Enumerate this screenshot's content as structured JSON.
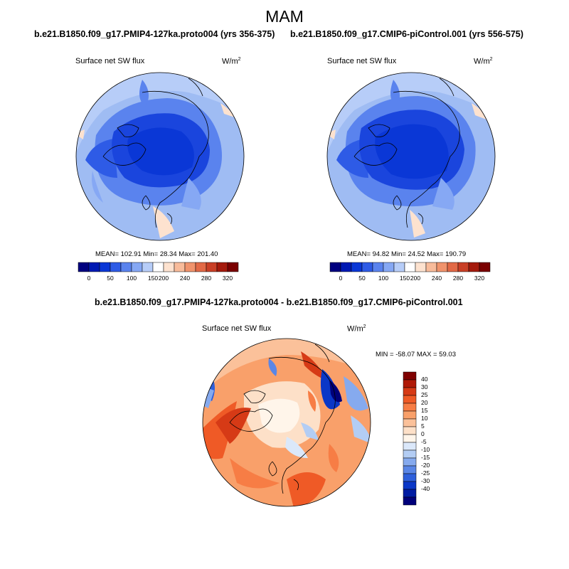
{
  "figure_title": "MAM",
  "panels": [
    {
      "case": "b.e21.B1850.f09_g17.PMIP4-127ka.proto004 (yrs 356-375)",
      "variable": "Surface net SW flux",
      "units": "W/m",
      "units_exp": "2",
      "stats": "MEAN= 102.91  Min=  28.34  Max= 201.40"
    },
    {
      "case": "b.e21.B1850.f09_g17.CMIP6-piControl.001 (yrs 556-575)",
      "variable": "Surface net SW flux",
      "units": "W/m",
      "units_exp": "2",
      "stats": "MEAN=  94.82  Min=  24.52  Max= 190.79"
    },
    {
      "case": "b.e21.B1850.f09_g17.PMIP4-127ka.proto004 - b.e21.B1850.f09_g17.CMIP6-piControl.001",
      "variable": "Surface net SW flux",
      "units": "W/m",
      "units_exp": "2",
      "stats": "MIN = -58.07 MAX =  59.03"
    }
  ],
  "abs_colorbar": {
    "colors": [
      "#00007f",
      "#0019b3",
      "#0a37d6",
      "#2e5be6",
      "#5a83ee",
      "#86a8f4",
      "#b7cdf8",
      "#ffffff",
      "#fde2cf",
      "#f8bb9a",
      "#f0936c",
      "#e26946",
      "#c93f26",
      "#a41a0c",
      "#7a0000"
    ],
    "tick_labels": [
      "0",
      "50",
      "100",
      "150",
      "200",
      "240",
      "280",
      "320"
    ]
  },
  "diff_colorbar": {
    "colors": [
      "#7f0000",
      "#b01a08",
      "#d63a16",
      "#ef5a26",
      "#f77d45",
      "#f9a06a",
      "#fbc19a",
      "#fde0c8",
      "#fff5ea",
      "#dbe8fa",
      "#b3cdf4",
      "#86aaee",
      "#5a86e6",
      "#2e5fdb",
      "#0a37c7",
      "#001ca3",
      "#00007a"
    ],
    "tick_labels": [
      "40",
      "30",
      "25",
      "20",
      "15",
      "10",
      "5",
      "0",
      "-5",
      "-10",
      "-15",
      "-20",
      "-25",
      "-30",
      "-40"
    ]
  }
}
